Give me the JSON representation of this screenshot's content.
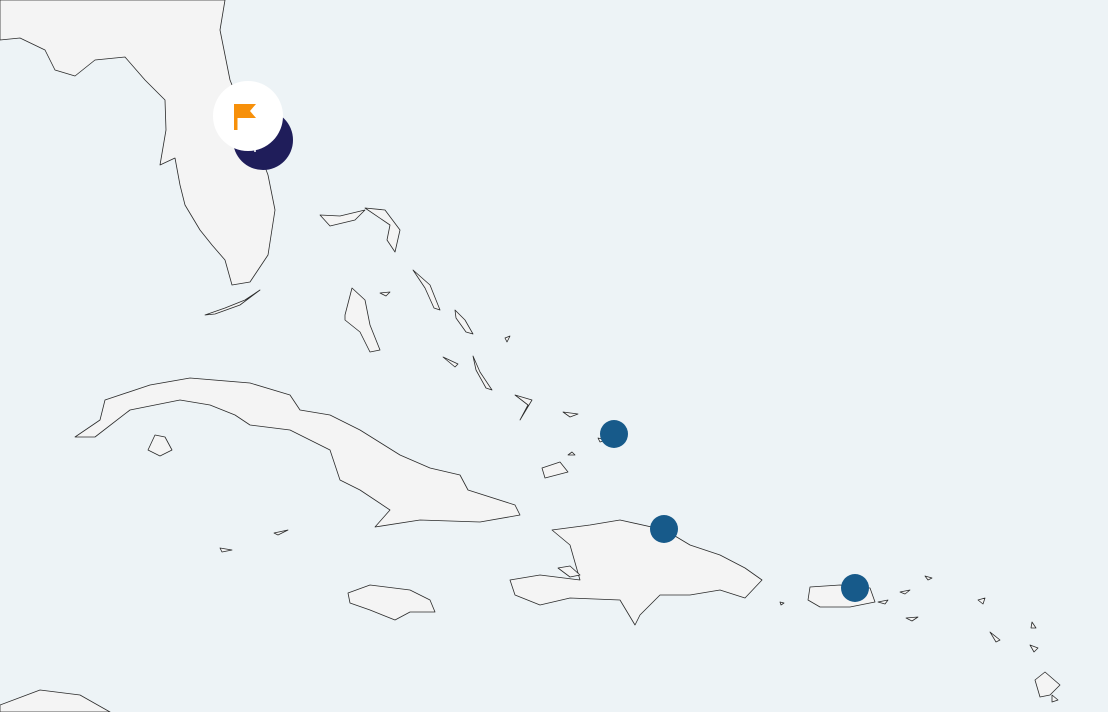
{
  "map": {
    "ocean_color": "#edf3f6",
    "land_color": "#f4f4f4",
    "selected_marker": {
      "icon": "flag-icon",
      "icon_color": "#f7900a",
      "badge_color": "#ffffff",
      "pin_color": "#1f1d5a"
    },
    "markers": [
      {
        "name": "marker-bahamas",
        "color": "#175a8a"
      },
      {
        "name": "marker-hispaniola",
        "color": "#175a8a"
      },
      {
        "name": "marker-puerto-rico",
        "color": "#175a8a"
      }
    ]
  }
}
